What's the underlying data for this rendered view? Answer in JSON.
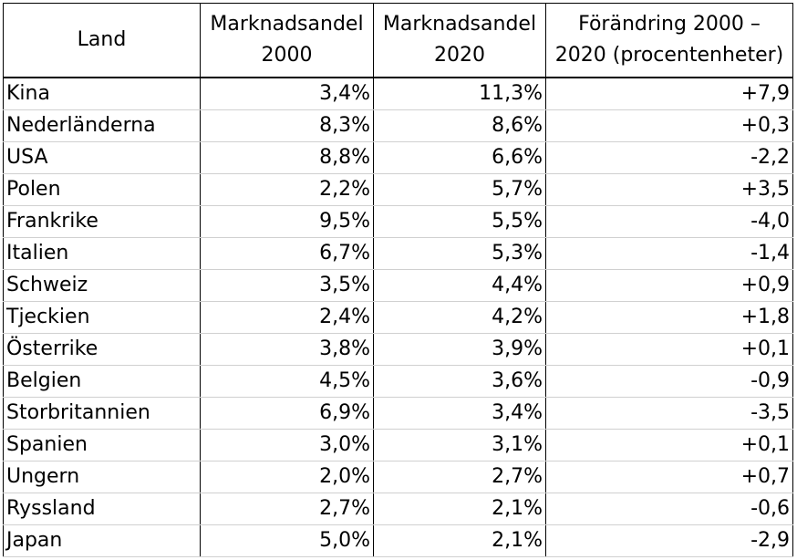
{
  "table": {
    "headers": {
      "land": "Land",
      "share2000_line1": "Marknadsandel",
      "share2000_line2": "2000",
      "share2020_line1": "Marknadsandel",
      "share2020_line2": "2020",
      "change_line1": "Förändring 2000 –",
      "change_line2": "2020 (procentenheter)"
    },
    "rows": [
      {
        "land": "Kina",
        "share2000": "3,4%",
        "share2020": "11,3%",
        "change": "+7,9"
      },
      {
        "land": "Nederländerna",
        "share2000": "8,3%",
        "share2020": "8,6%",
        "change": "+0,3"
      },
      {
        "land": "USA",
        "share2000": "8,8%",
        "share2020": "6,6%",
        "change": "-2,2"
      },
      {
        "land": "Polen",
        "share2000": "2,2%",
        "share2020": "5,7%",
        "change": "+3,5"
      },
      {
        "land": "Frankrike",
        "share2000": "9,5%",
        "share2020": "5,5%",
        "change": "-4,0"
      },
      {
        "land": "Italien",
        "share2000": "6,7%",
        "share2020": "5,3%",
        "change": "-1,4"
      },
      {
        "land": "Schweiz",
        "share2000": "3,5%",
        "share2020": "4,4%",
        "change": "+0,9"
      },
      {
        "land": "Tjeckien",
        "share2000": "2,4%",
        "share2020": "4,2%",
        "change": "+1,8"
      },
      {
        "land": "Österrike",
        "share2000": "3,8%",
        "share2020": "3,9%",
        "change": "+0,1"
      },
      {
        "land": "Belgien",
        "share2000": "4,5%",
        "share2020": "3,6%",
        "change": "-0,9"
      },
      {
        "land": "Storbritannien",
        "share2000": "6,9%",
        "share2020": "3,4%",
        "change": "-3,5"
      },
      {
        "land": "Spanien",
        "share2000": "3,0%",
        "share2020": "3,1%",
        "change": "+0,1"
      },
      {
        "land": "Ungern",
        "share2000": "2,0%",
        "share2020": "2,7%",
        "change": "+0,7"
      },
      {
        "land": "Ryssland",
        "share2000": "2,7%",
        "share2020": "2,1%",
        "change": "-0,6"
      },
      {
        "land": "Japan",
        "share2000": "5,0%",
        "share2020": "2,1%",
        "change": "-2,9"
      }
    ]
  }
}
